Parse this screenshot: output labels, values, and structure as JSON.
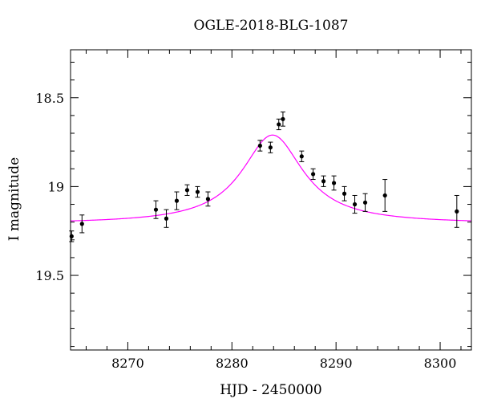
{
  "chart_data": {
    "type": "scatter",
    "title": "OGLE-2018-BLG-1087",
    "xlabel": "HJD - 2450000",
    "ylabel": "I magnitude",
    "xlim": [
      8264.5,
      8303
    ],
    "ylim": [
      19.92,
      18.23
    ],
    "y_inverted": true,
    "x_ticks": [
      8270,
      8280,
      8290,
      8300
    ],
    "y_ticks": [
      18.5,
      19,
      19.5
    ],
    "grid": false,
    "legend": "none",
    "colors": {
      "points": "#000000",
      "model": "#ff00ff"
    },
    "series": [
      {
        "type": "errorbar",
        "points": [
          {
            "x": 8264.6,
            "y": 19.28,
            "err": 0.03
          },
          {
            "x": 8265.6,
            "y": 19.21,
            "err": 0.05
          },
          {
            "x": 8272.7,
            "y": 19.13,
            "err": 0.05
          },
          {
            "x": 8273.7,
            "y": 19.18,
            "err": 0.05
          },
          {
            "x": 8274.7,
            "y": 19.08,
            "err": 0.05
          },
          {
            "x": 8275.7,
            "y": 19.02,
            "err": 0.03
          },
          {
            "x": 8276.7,
            "y": 19.03,
            "err": 0.03
          },
          {
            "x": 8277.7,
            "y": 19.07,
            "err": 0.04
          },
          {
            "x": 8282.7,
            "y": 18.77,
            "err": 0.03
          },
          {
            "x": 8283.7,
            "y": 18.78,
            "err": 0.03
          },
          {
            "x": 8284.5,
            "y": 18.65,
            "err": 0.03
          },
          {
            "x": 8284.9,
            "y": 18.62,
            "err": 0.04
          },
          {
            "x": 8286.7,
            "y": 18.83,
            "err": 0.03
          },
          {
            "x": 8287.8,
            "y": 18.93,
            "err": 0.03
          },
          {
            "x": 8288.8,
            "y": 18.97,
            "err": 0.03
          },
          {
            "x": 8289.8,
            "y": 18.98,
            "err": 0.04
          },
          {
            "x": 8290.8,
            "y": 19.04,
            "err": 0.04
          },
          {
            "x": 8291.8,
            "y": 19.1,
            "err": 0.05
          },
          {
            "x": 8292.8,
            "y": 19.09,
            "err": 0.05
          },
          {
            "x": 8294.7,
            "y": 19.05,
            "err": 0.09
          },
          {
            "x": 8301.6,
            "y": 19.14,
            "err": 0.09
          }
        ]
      },
      {
        "type": "line",
        "model": {
          "t0": 8283.9,
          "baseline": 19.21,
          "peak": 18.71,
          "width": 3.6
        }
      }
    ]
  }
}
